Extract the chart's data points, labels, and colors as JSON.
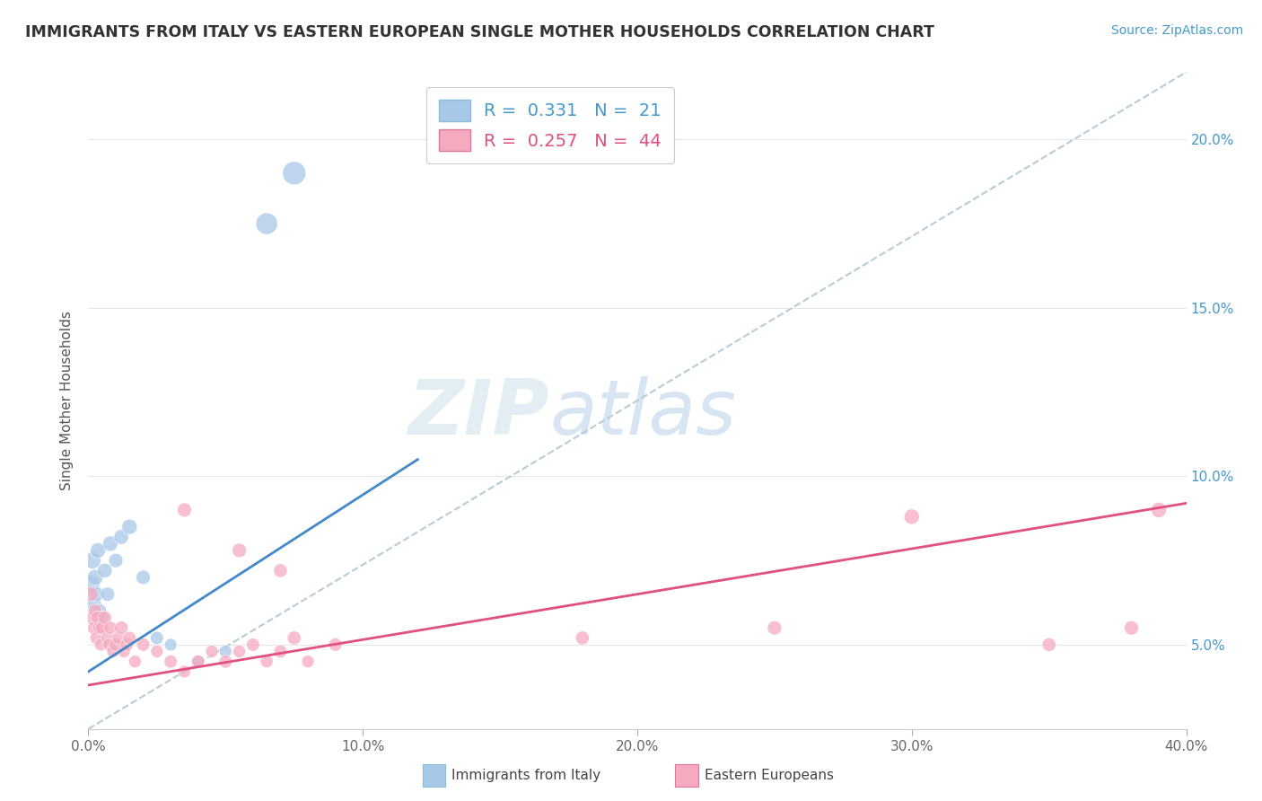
{
  "title": "IMMIGRANTS FROM ITALY VS EASTERN EUROPEAN SINGLE MOTHER HOUSEHOLDS CORRELATION CHART",
  "source": "Source: ZipAtlas.com",
  "ylabel": "Single Mother Households",
  "ytick_values": [
    5.0,
    10.0,
    15.0,
    20.0
  ],
  "xlim": [
    0.0,
    40.0
  ],
  "ylim": [
    2.5,
    22.0
  ],
  "legend_italy_r": "0.331",
  "legend_italy_n": "21",
  "legend_east_r": "0.257",
  "legend_east_n": "44",
  "italy_color": "#a8c8e8",
  "eastern_color": "#f5aabf",
  "italy_line_color": "#4488cc",
  "eastern_line_color": "#e05080",
  "trend_line_color": "#b8ccd8",
  "watermark_zip": "ZIP",
  "watermark_atlas": "atlas",
  "italy_line_x": [
    0.0,
    12.0
  ],
  "italy_line_y": [
    4.2,
    10.5
  ],
  "eastern_line_x": [
    0.0,
    40.0
  ],
  "eastern_line_y": [
    3.8,
    9.2
  ],
  "diag_line_x": [
    0.0,
    40.0
  ],
  "diag_line_y": [
    2.5,
    22.0
  ],
  "italy_scatter": [
    [
      0.1,
      6.8
    ],
    [
      0.15,
      7.5
    ],
    [
      0.2,
      6.2
    ],
    [
      0.25,
      7.0
    ],
    [
      0.3,
      6.5
    ],
    [
      0.35,
      7.8
    ],
    [
      0.4,
      6.0
    ],
    [
      0.5,
      5.8
    ],
    [
      0.6,
      7.2
    ],
    [
      0.7,
      6.5
    ],
    [
      0.8,
      8.0
    ],
    [
      1.0,
      7.5
    ],
    [
      1.2,
      8.2
    ],
    [
      1.5,
      8.5
    ],
    [
      2.0,
      7.0
    ],
    [
      2.5,
      5.2
    ],
    [
      3.0,
      5.0
    ],
    [
      4.0,
      4.5
    ],
    [
      5.0,
      4.8
    ],
    [
      6.5,
      17.5
    ],
    [
      7.5,
      19.0
    ]
  ],
  "eastern_scatter": [
    [
      0.1,
      6.5
    ],
    [
      0.15,
      5.8
    ],
    [
      0.2,
      5.5
    ],
    [
      0.25,
      6.0
    ],
    [
      0.3,
      5.2
    ],
    [
      0.35,
      5.8
    ],
    [
      0.4,
      5.5
    ],
    [
      0.45,
      5.0
    ],
    [
      0.5,
      5.5
    ],
    [
      0.6,
      5.8
    ],
    [
      0.7,
      5.2
    ],
    [
      0.75,
      5.0
    ],
    [
      0.8,
      5.5
    ],
    [
      0.9,
      4.8
    ],
    [
      1.0,
      5.0
    ],
    [
      1.1,
      5.2
    ],
    [
      1.2,
      5.5
    ],
    [
      1.3,
      4.8
    ],
    [
      1.4,
      5.0
    ],
    [
      1.5,
      5.2
    ],
    [
      1.7,
      4.5
    ],
    [
      2.0,
      5.0
    ],
    [
      2.5,
      4.8
    ],
    [
      3.0,
      4.5
    ],
    [
      3.5,
      4.2
    ],
    [
      4.0,
      4.5
    ],
    [
      4.5,
      4.8
    ],
    [
      5.0,
      4.5
    ],
    [
      5.5,
      4.8
    ],
    [
      6.0,
      5.0
    ],
    [
      6.5,
      4.5
    ],
    [
      7.0,
      4.8
    ],
    [
      7.5,
      5.2
    ],
    [
      8.0,
      4.5
    ],
    [
      9.0,
      5.0
    ],
    [
      3.5,
      9.0
    ],
    [
      5.5,
      7.8
    ],
    [
      7.0,
      7.2
    ],
    [
      18.0,
      5.2
    ],
    [
      25.0,
      5.5
    ],
    [
      30.0,
      8.8
    ],
    [
      35.0,
      5.0
    ],
    [
      38.0,
      5.5
    ],
    [
      39.0,
      9.0
    ]
  ],
  "italy_bubble_sizes": [
    200,
    180,
    150,
    160,
    140,
    150,
    130,
    120,
    140,
    130,
    150,
    130,
    140,
    150,
    130,
    110,
    100,
    100,
    100,
    300,
    350
  ],
  "eastern_bubble_sizes": [
    130,
    120,
    110,
    120,
    110,
    120,
    110,
    100,
    110,
    120,
    110,
    100,
    110,
    100,
    110,
    110,
    120,
    100,
    110,
    110,
    100,
    110,
    100,
    110,
    100,
    110,
    100,
    110,
    100,
    110,
    100,
    110,
    120,
    100,
    110,
    130,
    130,
    120,
    120,
    130,
    150,
    120,
    130,
    150
  ]
}
